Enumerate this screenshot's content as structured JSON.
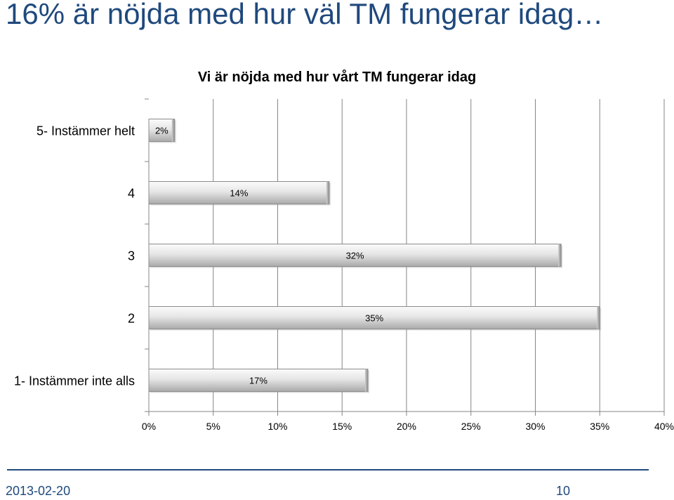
{
  "slide": {
    "title": "16% är nöjda med hur väl TM fungerar idag…",
    "footer_date": "2013-02-20",
    "page_number": "10"
  },
  "colors": {
    "title": "#1f497d",
    "bar_light": "#f2f2f2",
    "bar_mid": "#c8c8c8",
    "bar_dark": "#7f7f7f",
    "gridline": "#868686"
  },
  "chart_data": {
    "type": "bar",
    "orientation": "horizontal",
    "title": "Vi är nöjda med hur vårt TM fungerar idag",
    "categories": [
      "5- Instämmer helt",
      "4",
      "3",
      "2",
      "1- Instämmer inte alls"
    ],
    "values": [
      2,
      14,
      32,
      35,
      17
    ],
    "data_labels": [
      "2%",
      "14%",
      "32%",
      "35%",
      "17%"
    ],
    "xticks": [
      "0%",
      "5%",
      "10%",
      "15%",
      "20%",
      "25%",
      "30%",
      "35%",
      "40%"
    ],
    "xlim": [
      0,
      40
    ],
    "xlabel": "",
    "ylabel": "",
    "grid": "vertical",
    "legend": "none"
  }
}
